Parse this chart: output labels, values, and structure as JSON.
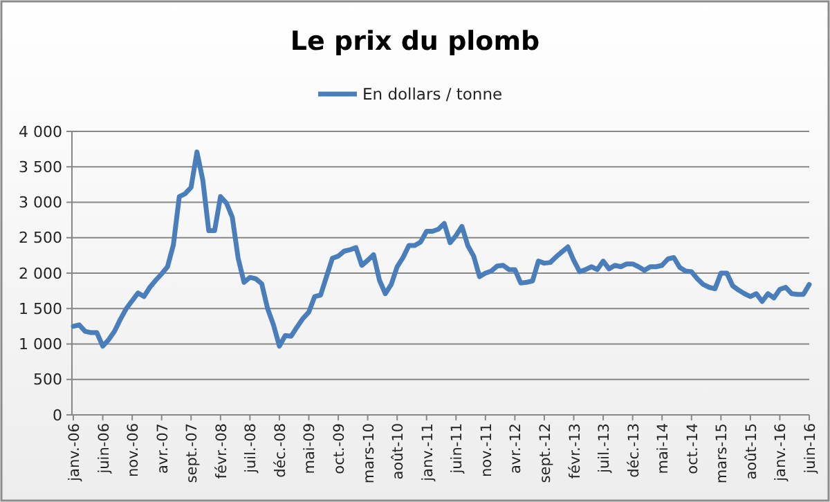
{
  "chart_data": {
    "type": "line",
    "title": "Le prix du plomb",
    "legend": "top",
    "grid": "y",
    "marker": "none",
    "line_style": "solid",
    "categories": [
      "janv.-06",
      null,
      null,
      null,
      null,
      "juin-06",
      null,
      null,
      null,
      null,
      "nov.-06",
      null,
      null,
      null,
      null,
      "avr.-07",
      null,
      null,
      null,
      null,
      "sept.-07",
      null,
      null,
      null,
      null,
      "févr.-08",
      null,
      null,
      null,
      null,
      "juil.-08",
      null,
      null,
      null,
      null,
      "déc.-08",
      null,
      null,
      null,
      null,
      "mai-09",
      null,
      null,
      null,
      null,
      "oct.-09",
      null,
      null,
      null,
      null,
      "mars-10",
      null,
      null,
      null,
      null,
      "août-10",
      null,
      null,
      null,
      null,
      "janv.-11",
      null,
      null,
      null,
      null,
      "juin-11",
      null,
      null,
      null,
      null,
      "nov.-11",
      null,
      null,
      null,
      null,
      "avr.-12",
      null,
      null,
      null,
      null,
      "sept.-12",
      null,
      null,
      null,
      null,
      "févr.-13",
      null,
      null,
      null,
      null,
      "juil.-13",
      null,
      null,
      null,
      null,
      "déc.-13",
      null,
      null,
      null,
      null,
      "mai-14",
      null,
      null,
      null,
      null,
      "oct.-14",
      null,
      null,
      null,
      null,
      "mars-15",
      null,
      null,
      null,
      null,
      "août-15",
      null,
      null,
      null,
      null,
      "janv.-16",
      null,
      null,
      null,
      null,
      "juin-16"
    ],
    "ylim": [
      0,
      4000
    ],
    "yticks": [
      {
        "value": 0,
        "label": "0"
      },
      {
        "value": 500,
        "label": "500"
      },
      {
        "value": 1000,
        "label": "1 000"
      },
      {
        "value": 1500,
        "label": "1 500"
      },
      {
        "value": 2000,
        "label": "2 000"
      },
      {
        "value": 2500,
        "label": "2 500"
      },
      {
        "value": 3000,
        "label": "3 000"
      },
      {
        "value": 3500,
        "label": "3 500"
      },
      {
        "value": 4000,
        "label": "4 000"
      }
    ],
    "series": [
      {
        "name": "En dollars / tonne",
        "color": "#4a7ebb",
        "values": [
          1250,
          1270,
          1180,
          1160,
          1160,
          970,
          1060,
          1180,
          1350,
          1500,
          1610,
          1720,
          1670,
          1800,
          1900,
          1990,
          2090,
          2400,
          3080,
          3120,
          3210,
          3710,
          3310,
          2600,
          2600,
          3080,
          2990,
          2790,
          2210,
          1870,
          1940,
          1920,
          1850,
          1500,
          1270,
          970,
          1120,
          1110,
          1240,
          1360,
          1450,
          1670,
          1690,
          1950,
          2210,
          2240,
          2310,
          2330,
          2360,
          2110,
          2180,
          2260,
          1900,
          1710,
          1840,
          2090,
          2220,
          2390,
          2390,
          2440,
          2590,
          2590,
          2620,
          2700,
          2430,
          2530,
          2660,
          2390,
          2240,
          1950,
          2000,
          2030,
          2100,
          2110,
          2050,
          2050,
          1860,
          1870,
          1890,
          2170,
          2140,
          2150,
          2230,
          2300,
          2370,
          2180,
          2020,
          2050,
          2090,
          2050,
          2170,
          2060,
          2110,
          2090,
          2130,
          2130,
          2090,
          2040,
          2090,
          2090,
          2110,
          2200,
          2220,
          2080,
          2030,
          2020,
          1920,
          1840,
          1800,
          1780,
          2000,
          2000,
          1820,
          1760,
          1710,
          1670,
          1710,
          1600,
          1710,
          1650,
          1770,
          1800,
          1710,
          1700,
          1700,
          1840
        ]
      }
    ]
  }
}
